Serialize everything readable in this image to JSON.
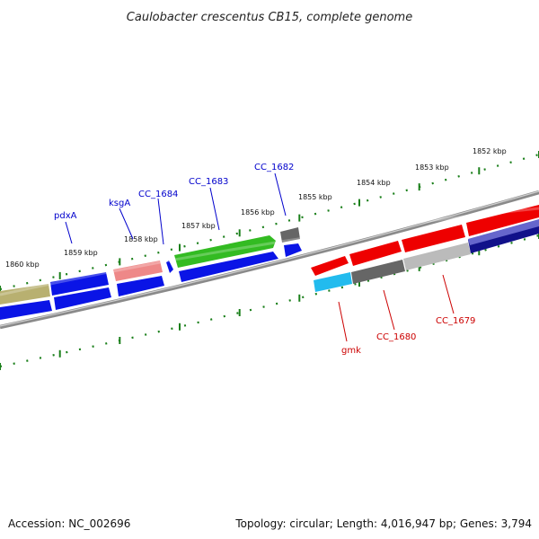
{
  "title": "Caulobacter crescentus CB15, complete genome",
  "ruler_labels": [
    "1852 kbp",
    "1853 kbp",
    "1854 kbp",
    "1855 kbp",
    "1856 kbp",
    "1857 kbp",
    "1858 kbp",
    "1859 kbp",
    "1860 kbp"
  ],
  "gene_labels_forward": [
    "pdxA",
    "ksgA",
    "CC_1684",
    "CC_1683",
    "CC_1682"
  ],
  "gene_labels_reverse": [
    "gmk",
    "CC_1680",
    "CC_1679"
  ],
  "colors": {
    "forward_label": "#0000cc",
    "reverse_label": "#cc0000",
    "tick": "#1a7f1a",
    "backbone": "#8a8a8a",
    "blue": "#0a14e6",
    "red": "#ee0000",
    "green": "#33bb22",
    "olive": "#b8b070",
    "pink": "#ee8888",
    "gray": "#666666",
    "silver": "#bbbbbb",
    "cyan": "#22bbee",
    "navy": "#11118a",
    "periwinkle": "#6666cc"
  },
  "footer": {
    "accession": "Accession: NC_002696",
    "topology": "Topology: circular; Length: 4,016,947 bp; Genes: 3,794"
  }
}
